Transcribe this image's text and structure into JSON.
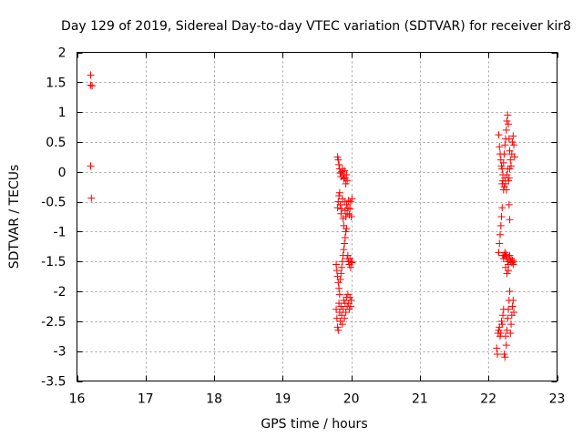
{
  "chart_data": {
    "type": "scatter",
    "title": "Day 129 of 2019, Sidereal Day-to-day VTEC variation (SDTVAR) for receiver kir8",
    "xlabel": "GPS time / hours",
    "ylabel": "SDTVAR / TECUs",
    "xlim": [
      16,
      23
    ],
    "ylim": [
      -3.5,
      2
    ],
    "xticks": [
      16,
      17,
      18,
      19,
      20,
      21,
      22,
      23
    ],
    "yticks": [
      -3.5,
      -3,
      -2.5,
      -2,
      -1.5,
      -1,
      -0.5,
      0,
      0.5,
      1,
      1.5,
      2
    ],
    "x_tick_labels": [
      "16",
      "17",
      "18",
      "19",
      "20",
      "21",
      "22",
      "23"
    ],
    "y_tick_labels": [
      "-3.5",
      "-3",
      "-2.5",
      "-2",
      "-1.5",
      "-1",
      "-0.5",
      "0",
      "0.5",
      "1",
      "1.5",
      "2"
    ],
    "grid": true,
    "marker": "+",
    "color": "#ff0000",
    "series": [
      {
        "name": "SDTVAR",
        "points": [
          [
            16.2,
            1.62
          ],
          [
            16.2,
            1.45
          ],
          [
            16.22,
            1.44
          ],
          [
            16.2,
            0.1
          ],
          [
            16.21,
            -0.44
          ],
          [
            19.8,
            0.25
          ],
          [
            19.81,
            0.2
          ],
          [
            19.82,
            0.12
          ],
          [
            19.83,
            0.05
          ],
          [
            19.84,
            -0.02
          ],
          [
            19.85,
            -0.08
          ],
          [
            19.86,
            0.0
          ],
          [
            19.87,
            0.05
          ],
          [
            19.88,
            -0.05
          ],
          [
            19.89,
            -0.12
          ],
          [
            19.9,
            0.02
          ],
          [
            19.91,
            -0.1
          ],
          [
            19.92,
            -0.2
          ],
          [
            19.93,
            -0.05
          ],
          [
            19.94,
            -0.15
          ],
          [
            19.8,
            -0.6
          ],
          [
            19.81,
            -0.5
          ],
          [
            19.82,
            -0.4
          ],
          [
            19.83,
            -0.35
          ],
          [
            19.84,
            -0.55
          ],
          [
            19.85,
            -0.7
          ],
          [
            19.86,
            -0.62
          ],
          [
            19.87,
            -0.45
          ],
          [
            19.88,
            -0.78
          ],
          [
            19.89,
            -0.9
          ],
          [
            19.9,
            -0.5
          ],
          [
            19.91,
            -0.65
          ],
          [
            19.92,
            -0.75
          ],
          [
            19.93,
            -0.55
          ],
          [
            19.94,
            -0.7
          ],
          [
            19.95,
            -0.6
          ],
          [
            19.96,
            -0.48
          ],
          [
            19.97,
            -0.72
          ],
          [
            19.98,
            -0.62
          ],
          [
            19.99,
            -0.5
          ],
          [
            20.0,
            -0.75
          ],
          [
            20.01,
            -0.45
          ],
          [
            19.78,
            -1.55
          ],
          [
            19.79,
            -1.65
          ],
          [
            19.8,
            -1.75
          ],
          [
            19.81,
            -1.85
          ],
          [
            19.82,
            -1.95
          ],
          [
            19.83,
            -2.05
          ],
          [
            19.84,
            -1.8
          ],
          [
            19.85,
            -1.7
          ],
          [
            19.86,
            -1.6
          ],
          [
            19.87,
            -1.5
          ],
          [
            19.88,
            -1.4
          ],
          [
            19.89,
            -1.3
          ],
          [
            19.9,
            -1.2
          ],
          [
            19.91,
            -1.1
          ],
          [
            19.92,
            -1.0
          ],
          [
            19.93,
            -0.95
          ],
          [
            19.94,
            -1.45
          ],
          [
            19.95,
            -1.4
          ],
          [
            19.96,
            -1.5
          ],
          [
            19.97,
            -1.55
          ],
          [
            19.98,
            -1.45
          ],
          [
            19.99,
            -1.6
          ],
          [
            20.0,
            -1.5
          ],
          [
            20.01,
            -1.52
          ],
          [
            19.78,
            -2.3
          ],
          [
            19.79,
            -2.45
          ],
          [
            19.8,
            -2.6
          ],
          [
            19.81,
            -2.65
          ],
          [
            19.82,
            -2.2
          ],
          [
            19.83,
            -2.35
          ],
          [
            19.84,
            -2.5
          ],
          [
            19.85,
            -2.25
          ],
          [
            19.86,
            -2.4
          ],
          [
            19.87,
            -2.55
          ],
          [
            19.88,
            -2.3
          ],
          [
            19.89,
            -2.15
          ],
          [
            19.9,
            -2.45
          ],
          [
            19.91,
            -2.2
          ],
          [
            19.92,
            -2.35
          ],
          [
            19.93,
            -2.1
          ],
          [
            19.94,
            -2.25
          ],
          [
            19.95,
            -2.05
          ],
          [
            19.96,
            -2.2
          ],
          [
            19.97,
            -2.3
          ],
          [
            19.98,
            -2.1
          ],
          [
            19.99,
            -2.25
          ],
          [
            20.0,
            -2.15
          ],
          [
            22.15,
            0.62
          ],
          [
            22.16,
            0.42
          ],
          [
            22.17,
            0.3
          ],
          [
            22.18,
            0.2
          ],
          [
            22.19,
            0.1
          ],
          [
            22.2,
            0.05
          ],
          [
            22.21,
            -0.05
          ],
          [
            22.22,
            0.15
          ],
          [
            22.23,
            0.3
          ],
          [
            22.24,
            0.45
          ],
          [
            22.25,
            0.55
          ],
          [
            22.26,
            0.7
          ],
          [
            22.27,
            0.85
          ],
          [
            22.28,
            0.95
          ],
          [
            22.29,
            0.8
          ],
          [
            22.3,
            0.55
          ],
          [
            22.31,
            0.35
          ],
          [
            22.32,
            0.2
          ],
          [
            22.33,
            0.1
          ],
          [
            22.34,
            0.3
          ],
          [
            22.35,
            0.5
          ],
          [
            22.36,
            0.6
          ],
          [
            22.37,
            0.45
          ],
          [
            22.38,
            0.25
          ],
          [
            22.2,
            -0.2
          ],
          [
            22.21,
            -0.15
          ],
          [
            22.22,
            -0.3
          ],
          [
            22.23,
            -0.25
          ],
          [
            22.24,
            -0.1
          ],
          [
            22.25,
            -0.2
          ],
          [
            22.26,
            -0.3
          ],
          [
            22.27,
            -0.05
          ],
          [
            22.28,
            0.05
          ],
          [
            22.29,
            -0.15
          ],
          [
            22.3,
            -0.1
          ],
          [
            22.31,
            0.05
          ],
          [
            22.3,
            -0.55
          ],
          [
            22.31,
            -0.8
          ],
          [
            22.15,
            -1.35
          ],
          [
            22.16,
            -1.2
          ],
          [
            22.17,
            -1.05
          ],
          [
            22.18,
            -0.9
          ],
          [
            22.19,
            -0.75
          ],
          [
            22.2,
            -0.6
          ],
          [
            22.21,
            -1.4
          ],
          [
            22.22,
            -1.45
          ],
          [
            22.23,
            -1.4
          ],
          [
            22.24,
            -1.35
          ],
          [
            22.25,
            -1.42
          ],
          [
            22.26,
            -1.38
          ],
          [
            22.27,
            -1.45
          ],
          [
            22.28,
            -1.5
          ],
          [
            22.29,
            -1.55
          ],
          [
            22.3,
            -1.45
          ],
          [
            22.31,
            -1.4
          ],
          [
            22.32,
            -1.5
          ],
          [
            22.33,
            -1.45
          ],
          [
            22.34,
            -1.52
          ],
          [
            22.35,
            -1.48
          ],
          [
            22.36,
            -1.55
          ],
          [
            22.37,
            -1.5
          ],
          [
            22.25,
            -1.6
          ],
          [
            22.27,
            -1.7
          ],
          [
            22.29,
            -1.65
          ],
          [
            22.12,
            -2.95
          ],
          [
            22.13,
            -3.05
          ],
          [
            22.14,
            -2.7
          ],
          [
            22.15,
            -2.65
          ],
          [
            22.16,
            -2.6
          ],
          [
            22.17,
            -2.75
          ],
          [
            22.18,
            -2.7
          ],
          [
            22.19,
            -2.5
          ],
          [
            22.2,
            -2.55
          ],
          [
            22.21,
            -2.4
          ],
          [
            22.22,
            -2.3
          ],
          [
            22.23,
            -3.05
          ],
          [
            22.24,
            -3.1
          ],
          [
            22.25,
            -2.75
          ],
          [
            22.26,
            -2.9
          ],
          [
            22.27,
            -2.65
          ],
          [
            22.28,
            -2.45
          ],
          [
            22.29,
            -2.3
          ],
          [
            22.3,
            -2.15
          ],
          [
            22.31,
            -2.0
          ],
          [
            22.32,
            -2.7
          ],
          [
            22.33,
            -2.55
          ],
          [
            22.34,
            -2.4
          ],
          [
            22.35,
            -2.25
          ],
          [
            22.36,
            -2.15
          ],
          [
            22.37,
            -2.35
          ]
        ]
      }
    ]
  }
}
